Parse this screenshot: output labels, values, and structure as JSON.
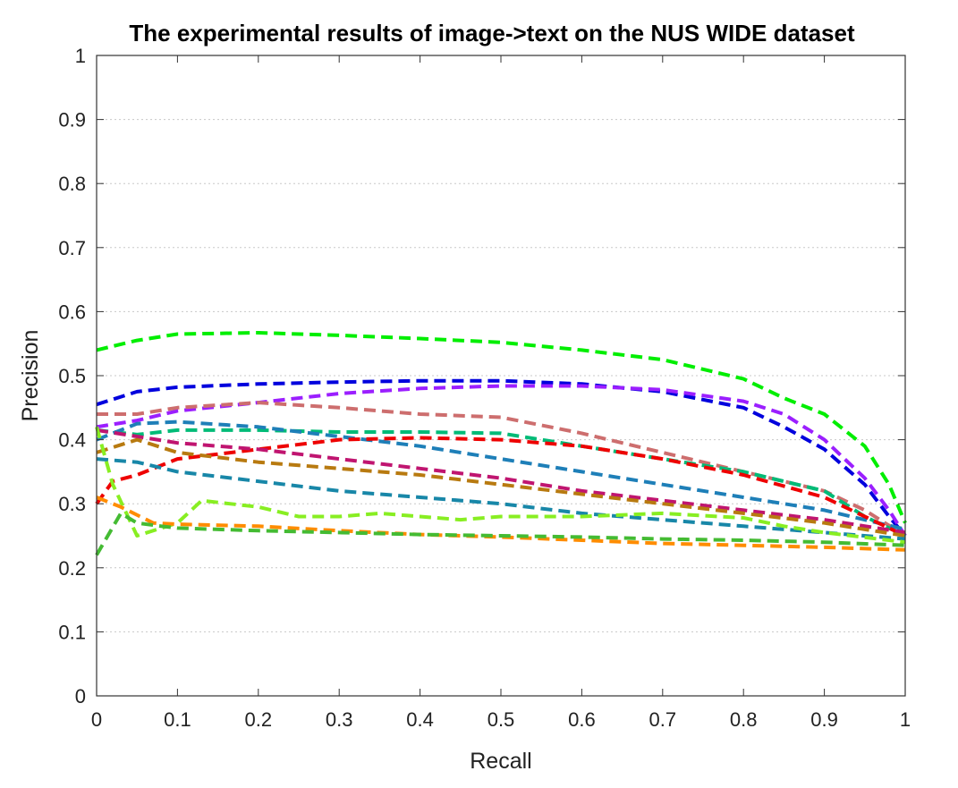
{
  "chart_data": {
    "type": "line",
    "title": "The experimental results of image->text on the NUS WIDE dataset",
    "xlabel": "Recall",
    "ylabel": "Precision",
    "xlim": [
      0,
      1
    ],
    "ylim": [
      0,
      1
    ],
    "xticks": [
      "0",
      "0.1",
      "0.2",
      "0.3",
      "0.4",
      "0.5",
      "0.6",
      "0.7",
      "0.8",
      "0.9",
      "1"
    ],
    "yticks": [
      "0",
      "0.1",
      "0.2",
      "0.3",
      "0.4",
      "0.5",
      "0.6",
      "0.7",
      "0.8",
      "0.9",
      "1"
    ],
    "grid": "horizontal",
    "line_style": "dashed",
    "series": [
      {
        "color": "#00ee00",
        "x": [
          0,
          0.05,
          0.1,
          0.2,
          0.3,
          0.4,
          0.5,
          0.6,
          0.7,
          0.8,
          0.85,
          0.9,
          0.95,
          0.98,
          1
        ],
        "y": [
          0.54,
          0.555,
          0.565,
          0.567,
          0.563,
          0.558,
          0.552,
          0.54,
          0.525,
          0.495,
          0.465,
          0.44,
          0.39,
          0.33,
          0.27
        ]
      },
      {
        "color": "#0000dd",
        "x": [
          0,
          0.05,
          0.1,
          0.2,
          0.3,
          0.4,
          0.5,
          0.6,
          0.7,
          0.8,
          0.85,
          0.9,
          0.95,
          0.98,
          1
        ],
        "y": [
          0.455,
          0.475,
          0.482,
          0.487,
          0.49,
          0.492,
          0.492,
          0.487,
          0.475,
          0.45,
          0.42,
          0.385,
          0.33,
          0.28,
          0.25
        ]
      },
      {
        "color": "#9b1fff",
        "x": [
          0,
          0.05,
          0.1,
          0.2,
          0.3,
          0.4,
          0.5,
          0.6,
          0.7,
          0.8,
          0.85,
          0.9,
          0.95,
          0.98,
          1
        ],
        "y": [
          0.42,
          0.43,
          0.445,
          0.458,
          0.472,
          0.48,
          0.484,
          0.484,
          0.478,
          0.46,
          0.44,
          0.4,
          0.34,
          0.29,
          0.25
        ]
      },
      {
        "color": "#cd6e6e",
        "x": [
          0,
          0.05,
          0.1,
          0.2,
          0.3,
          0.4,
          0.5,
          0.6,
          0.7,
          0.8,
          0.9,
          0.95,
          1
        ],
        "y": [
          0.44,
          0.44,
          0.45,
          0.458,
          0.45,
          0.44,
          0.435,
          0.41,
          0.38,
          0.35,
          0.32,
          0.29,
          0.25
        ]
      },
      {
        "color": "#00bb77",
        "x": [
          0,
          0.05,
          0.1,
          0.2,
          0.3,
          0.4,
          0.5,
          0.6,
          0.7,
          0.8,
          0.9,
          0.95,
          1
        ],
        "y": [
          0.415,
          0.408,
          0.415,
          0.415,
          0.412,
          0.412,
          0.41,
          0.39,
          0.37,
          0.35,
          0.32,
          0.28,
          0.25
        ]
      },
      {
        "color": "#1e7fb8",
        "x": [
          0,
          0.05,
          0.1,
          0.2,
          0.3,
          0.4,
          0.5,
          0.6,
          0.7,
          0.8,
          0.9,
          1
        ],
        "y": [
          0.4,
          0.425,
          0.428,
          0.42,
          0.405,
          0.39,
          0.37,
          0.35,
          0.33,
          0.31,
          0.29,
          0.26
        ]
      },
      {
        "color": "#ee0000",
        "x": [
          0,
          0.02,
          0.05,
          0.1,
          0.2,
          0.3,
          0.4,
          0.5,
          0.6,
          0.7,
          0.8,
          0.9,
          1
        ],
        "y": [
          0.3,
          0.335,
          0.345,
          0.37,
          0.385,
          0.4,
          0.403,
          0.4,
          0.39,
          0.37,
          0.345,
          0.31,
          0.25
        ]
      },
      {
        "color": "#c01570",
        "x": [
          0,
          0.05,
          0.1,
          0.2,
          0.3,
          0.4,
          0.5,
          0.6,
          0.7,
          0.8,
          0.9,
          1
        ],
        "y": [
          0.415,
          0.405,
          0.395,
          0.385,
          0.37,
          0.355,
          0.34,
          0.32,
          0.305,
          0.29,
          0.275,
          0.255
        ]
      },
      {
        "color": "#b87a10",
        "x": [
          0,
          0.05,
          0.1,
          0.2,
          0.3,
          0.4,
          0.5,
          0.6,
          0.7,
          0.8,
          0.9,
          1
        ],
        "y": [
          0.38,
          0.4,
          0.38,
          0.365,
          0.355,
          0.345,
          0.33,
          0.315,
          0.3,
          0.285,
          0.27,
          0.25
        ]
      },
      {
        "color": "#1887a8",
        "x": [
          0,
          0.05,
          0.1,
          0.2,
          0.3,
          0.4,
          0.5,
          0.6,
          0.7,
          0.8,
          0.9,
          1
        ],
        "y": [
          0.37,
          0.365,
          0.35,
          0.335,
          0.32,
          0.31,
          0.3,
          0.285,
          0.275,
          0.265,
          0.255,
          0.245
        ]
      },
      {
        "color": "#88ee22",
        "x": [
          0,
          0.02,
          0.05,
          0.1,
          0.13,
          0.2,
          0.25,
          0.3,
          0.35,
          0.4,
          0.45,
          0.5,
          0.6,
          0.7,
          0.8,
          0.85,
          0.9,
          1
        ],
        "y": [
          0.42,
          0.33,
          0.25,
          0.27,
          0.305,
          0.295,
          0.28,
          0.28,
          0.285,
          0.28,
          0.275,
          0.28,
          0.28,
          0.285,
          0.278,
          0.265,
          0.255,
          0.24
        ]
      },
      {
        "color": "#ff8c00",
        "x": [
          0,
          0.03,
          0.07,
          0.1,
          0.2,
          0.3,
          0.4,
          0.5,
          0.6,
          0.7,
          0.8,
          0.9,
          1
        ],
        "y": [
          0.31,
          0.295,
          0.27,
          0.268,
          0.265,
          0.258,
          0.252,
          0.248,
          0.243,
          0.238,
          0.235,
          0.232,
          0.228
        ]
      },
      {
        "color": "#44bb33",
        "x": [
          0,
          0.03,
          0.05,
          0.08,
          0.1,
          0.2,
          0.3,
          0.4,
          0.5,
          0.6,
          0.7,
          0.8,
          0.9,
          1
        ],
        "y": [
          0.22,
          0.285,
          0.27,
          0.265,
          0.262,
          0.258,
          0.255,
          0.252,
          0.25,
          0.248,
          0.245,
          0.243,
          0.24,
          0.235
        ]
      }
    ]
  }
}
